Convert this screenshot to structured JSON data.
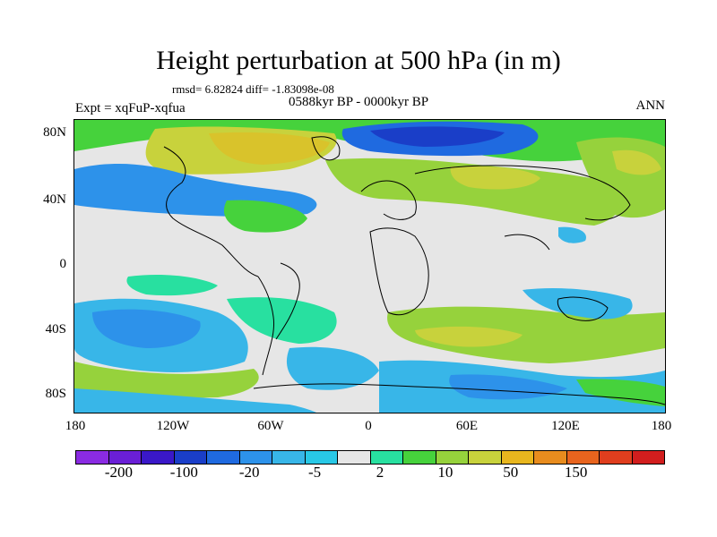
{
  "title": "Height perturbation at 500 hPa (in m)",
  "stats": "rmsd= 6.82824 diff= -1.83098e-08",
  "expt": "Expt = xqFuP-xqfua",
  "period": "0588kyr BP - 0000kyr BP",
  "season": "ANN",
  "lat_ticks": [
    "80N",
    "40N",
    "0",
    "40S",
    "80S"
  ],
  "lon_ticks": [
    "180",
    "120W",
    "60W",
    "0",
    "60E",
    "120E",
    "180"
  ],
  "colorbar": {
    "colors": [
      "#8a2be2",
      "#6a1fd6",
      "#3a18c8",
      "#1a3ec8",
      "#1f6ae0",
      "#2d92ea",
      "#38b6e8",
      "#28c8e6",
      "#e6e6e6",
      "#28e0a0",
      "#46d23c",
      "#96d23c",
      "#c8d23c",
      "#e8b61e",
      "#e88c1e",
      "#e8641e",
      "#e03e1e",
      "#d21e1e"
    ],
    "labels": [
      "-200",
      "-100",
      "-20",
      "-5",
      "2",
      "10",
      "50",
      "150"
    ]
  },
  "field_colors": {
    "neutral": "#e6e6e6",
    "light_green": "#28e0a0",
    "green": "#46d23c",
    "yellow_green": "#96d23c",
    "olive": "#c8d23c",
    "cyan": "#38b6e8",
    "light_blue": "#2d92ea",
    "blue": "#1f6ae0",
    "dark_blue": "#1a3ec8"
  }
}
